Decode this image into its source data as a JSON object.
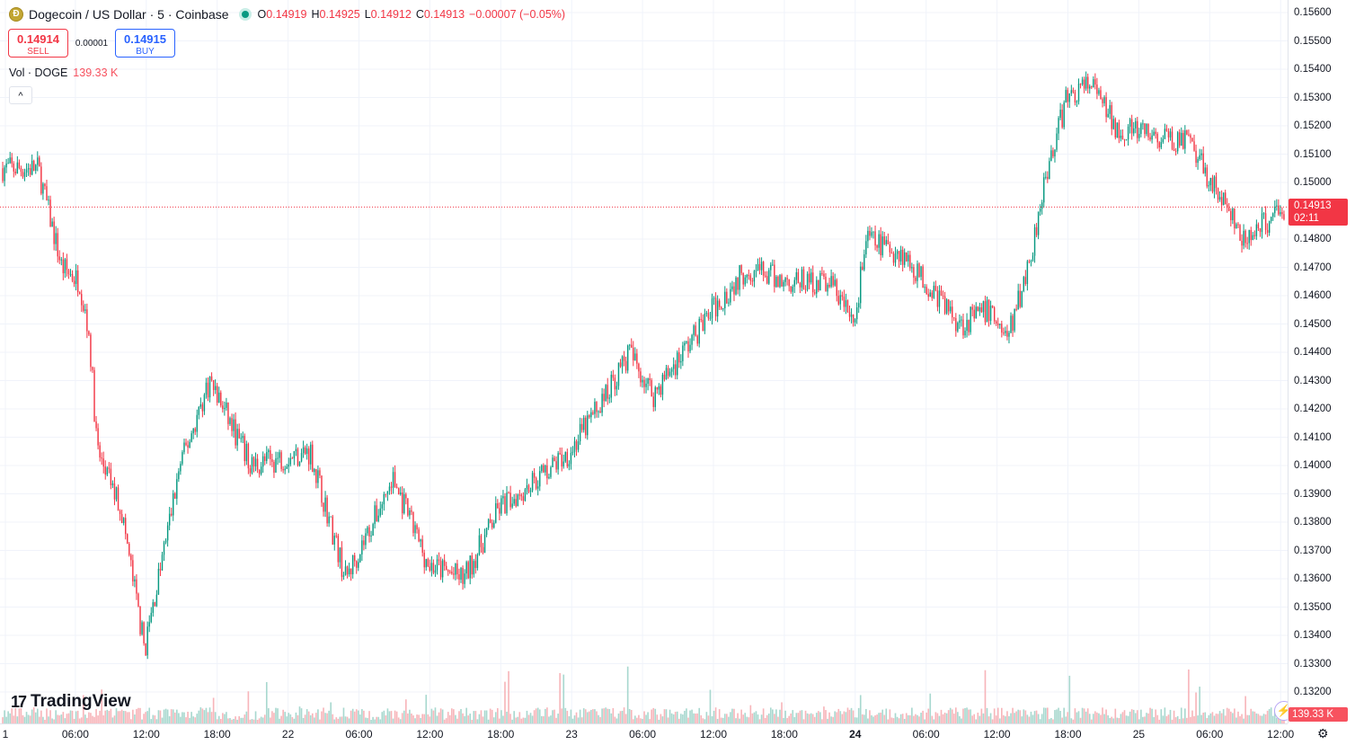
{
  "header": {
    "symbol_title": "Dogecoin / US Dollar · 5 · Coinbase",
    "coin_glyph": "Ð",
    "ohlc": {
      "open_label": "O",
      "open": "0.14919",
      "high_label": "H",
      "high": "0.14925",
      "low_label": "L",
      "low": "0.14912",
      "close_label": "C",
      "close": "0.14913",
      "change": "−0.00007 (−0.05%)"
    }
  },
  "trade": {
    "sell_price": "0.14914",
    "sell_label": "SELL",
    "spread": "0.00001",
    "buy_price": "0.14915",
    "buy_label": "BUY"
  },
  "volume_legend": {
    "label": "Vol · DOGE",
    "value": "139.33 K"
  },
  "collapse_glyph": "^",
  "brand": {
    "mark": "17",
    "name": "TradingView"
  },
  "price_axis": {
    "labels": [
      "0.15600",
      "0.15500",
      "0.15400",
      "0.15300",
      "0.15200",
      "0.15100",
      "0.15000",
      "0.14800",
      "0.14700",
      "0.14600",
      "0.14500",
      "0.14400",
      "0.14300",
      "0.14200",
      "0.14100",
      "0.14000",
      "0.13900",
      "0.13800",
      "0.13700",
      "0.13600",
      "0.13500",
      "0.13400",
      "0.13300",
      "0.13200"
    ],
    "last_price": "0.14913",
    "countdown": "02:11",
    "volume_value": "139.33 K"
  },
  "time_axis": {
    "labels": [
      "1",
      "06:00",
      "12:00",
      "18:00",
      "22",
      "06:00",
      "12:00",
      "18:00",
      "23",
      "06:00",
      "12:00",
      "18:00",
      "24",
      "06:00",
      "12:00",
      "18:00",
      "25",
      "06:00",
      "12:00"
    ]
  },
  "icons": {
    "lightning": "⚡",
    "settings": "⚙"
  },
  "colors": {
    "up": "#089981",
    "down": "#f23645",
    "up_vol": "#a8d8cf",
    "down_vol": "#f7b5ba",
    "last_price": "#f23645"
  },
  "chart_data": {
    "type": "candlestick",
    "title": "Dogecoin / US Dollar · 5 · Coinbase",
    "x_axis": "time (5-minute bars)",
    "y_axis": "price (USD)",
    "ylim": [
      0.1316,
      0.1563
    ],
    "last_close": 0.14913,
    "path_checkpoints": [
      {
        "t": "day1 03:00",
        "price": 0.1505
      },
      {
        "t": "day1 05:00",
        "price": 0.147
      },
      {
        "t": "day1 06:30",
        "price": 0.1465
      },
      {
        "t": "day1 07:20",
        "price": 0.1445
      },
      {
        "t": "day1 08:00",
        "price": 0.1405
      },
      {
        "t": "day1 10:00",
        "price": 0.1385
      },
      {
        "t": "day1 12:00",
        "price": 0.1335
      },
      {
        "t": "day1 15:00",
        "price": 0.14
      },
      {
        "t": "day1 17:30",
        "price": 0.143
      },
      {
        "t": "day1 21:00",
        "price": 0.14
      },
      {
        "t": "22 02:00",
        "price": 0.1405
      },
      {
        "t": "22 05:00",
        "price": 0.136
      },
      {
        "t": "22 09:00",
        "price": 0.1395
      },
      {
        "t": "22 12:00",
        "price": 0.1365
      },
      {
        "t": "22 15:00",
        "price": 0.136
      },
      {
        "t": "22 18:00",
        "price": 0.1385
      },
      {
        "t": "23 00:00",
        "price": 0.1405
      },
      {
        "t": "23 03:00",
        "price": 0.1425
      },
      {
        "t": "23 05:00",
        "price": 0.144
      },
      {
        "t": "23 07:00",
        "price": 0.1425
      },
      {
        "t": "23 12:00",
        "price": 0.1455
      },
      {
        "t": "23 15:00",
        "price": 0.147
      },
      {
        "t": "23 18:00",
        "price": 0.1465
      },
      {
        "t": "23 22:00",
        "price": 0.1465
      },
      {
        "t": "24 00:00",
        "price": 0.145
      },
      {
        "t": "24 01:00",
        "price": 0.148
      },
      {
        "t": "24 04:00",
        "price": 0.1475
      },
      {
        "t": "24 06:00",
        "price": 0.1465
      },
      {
        "t": "24 09:00",
        "price": 0.145
      },
      {
        "t": "24 11:30",
        "price": 0.1455
      },
      {
        "t": "24 13:00",
        "price": 0.1445
      },
      {
        "t": "24 15:00",
        "price": 0.1475
      },
      {
        "t": "24 16:00",
        "price": 0.15
      },
      {
        "t": "24 18:00",
        "price": 0.153
      },
      {
        "t": "24 20:00",
        "price": 0.1535
      },
      {
        "t": "24 22:00",
        "price": 0.152
      },
      {
        "t": "25 02:00",
        "price": 0.1515
      },
      {
        "t": "25 04:00",
        "price": 0.1515
      },
      {
        "t": "25 07:00",
        "price": 0.1495
      },
      {
        "t": "25 09:00",
        "price": 0.1478
      },
      {
        "t": "25 12:00",
        "price": 0.14913
      }
    ]
  }
}
